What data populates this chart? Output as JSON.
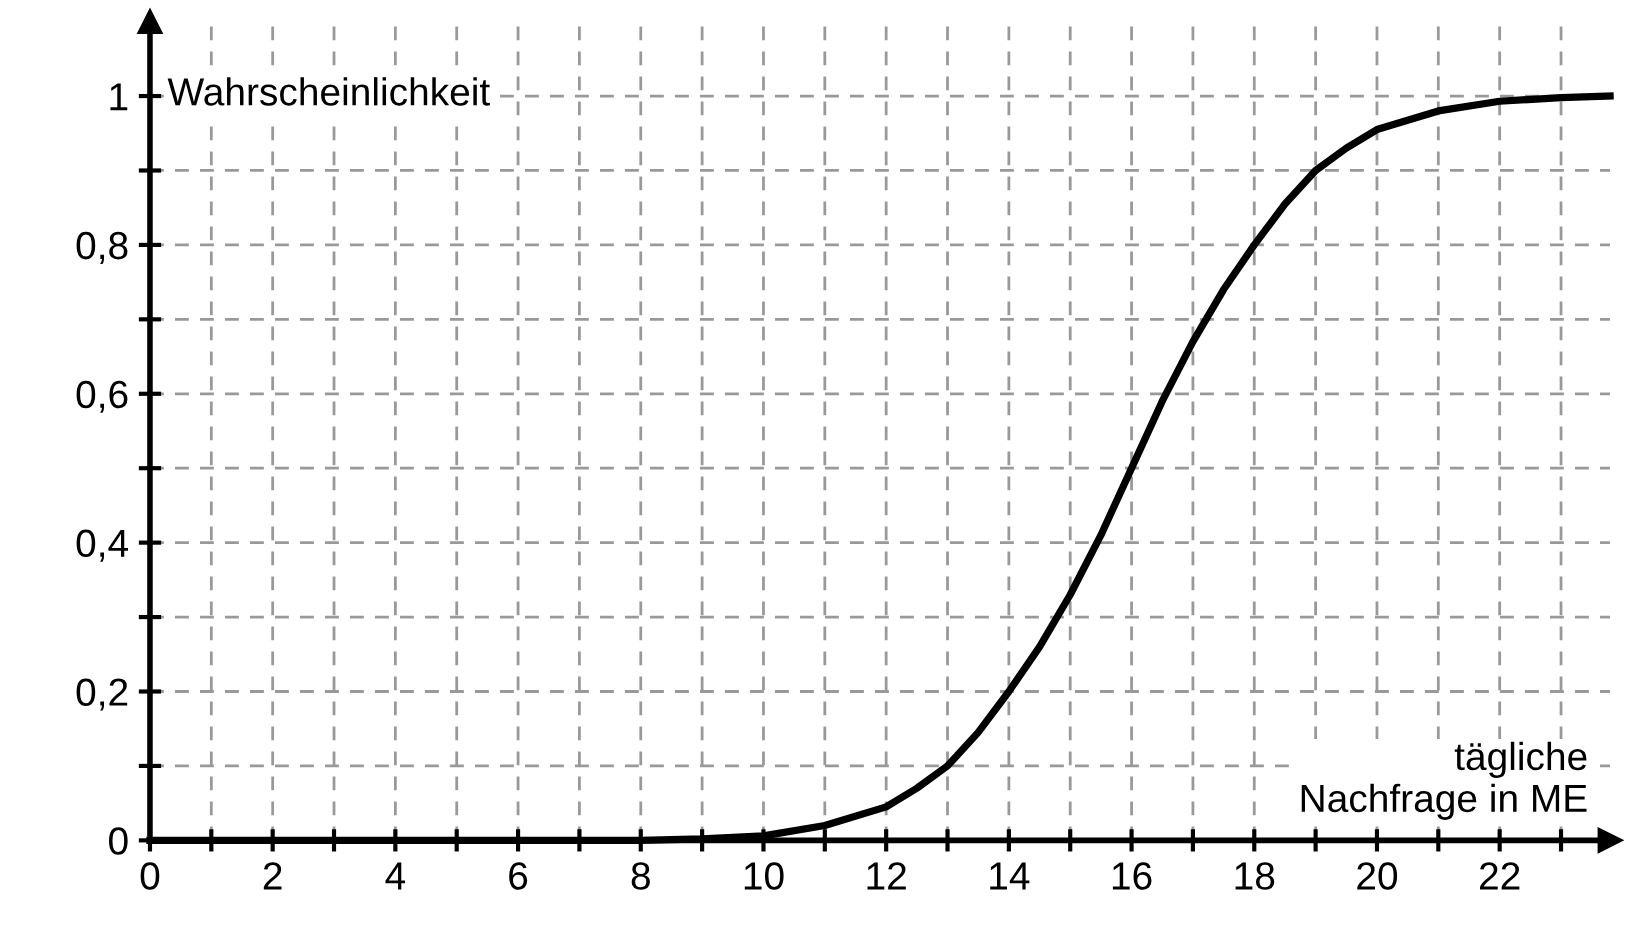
{
  "chart_data": {
    "type": "line",
    "xlabel": "tägliche\nNachfrage in ME",
    "ylabel": "Wahrscheinlichkeit",
    "x": [
      0,
      2,
      4,
      6,
      8,
      9,
      10,
      11,
      12,
      12.5,
      13,
      13.5,
      14,
      14.5,
      15,
      15.5,
      16,
      16.5,
      17,
      17.5,
      18,
      18.5,
      19,
      19.5,
      20,
      21,
      22,
      23,
      23.8
    ],
    "series": [
      {
        "color": "#000000",
        "values": [
          0,
          0,
          0,
          0,
          0,
          0.002,
          0.006,
          0.02,
          0.045,
          0.07,
          0.1,
          0.145,
          0.2,
          0.26,
          0.33,
          0.41,
          0.5,
          0.59,
          0.67,
          0.74,
          0.8,
          0.855,
          0.9,
          0.93,
          0.955,
          0.98,
          0.993,
          0.998,
          1
        ]
      }
    ],
    "xlim": [
      0,
      23.8
    ],
    "ylim": [
      0,
      1.1
    ],
    "xticks": [
      0,
      {
        "value": 1,
        "label": null
      },
      2,
      {
        "value": 3,
        "label": null
      },
      4,
      {
        "value": 5,
        "label": null
      },
      6,
      {
        "value": 7,
        "label": null
      },
      8,
      {
        "value": 9,
        "label": null
      },
      10,
      {
        "value": 11,
        "label": null
      },
      12,
      {
        "value": 13,
        "label": null
      },
      14,
      {
        "value": 15,
        "label": null
      },
      16,
      {
        "value": 17,
        "label": null
      },
      18,
      {
        "value": 19,
        "label": null
      },
      20,
      {
        "value": 21,
        "label": null
      },
      22,
      {
        "value": 23,
        "label": null
      }
    ],
    "yticks": [
      0,
      {
        "value": 0.1,
        "label": null
      },
      {
        "value": 0.2,
        "label": "0,2"
      },
      {
        "value": 0.3,
        "label": null
      },
      {
        "value": 0.4,
        "label": "0,4"
      },
      {
        "value": 0.5,
        "label": null
      },
      {
        "value": 0.6,
        "label": "0,6"
      },
      {
        "value": 0.7,
        "label": null
      },
      {
        "value": 0.8,
        "label": "0,8"
      },
      {
        "value": 0.9,
        "label": null
      },
      1
    ],
    "grid": true,
    "line_style": "solid",
    "marker": "none"
  }
}
